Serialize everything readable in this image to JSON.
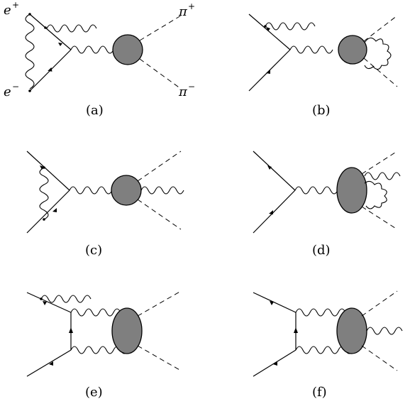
{
  "particles": {
    "e_plus_base": "e",
    "e_plus_sup": "+",
    "e_minus_base": "e",
    "e_minus_sup": "−",
    "pi_plus_base": "π",
    "pi_plus_sup": "+",
    "pi_minus_base": "π",
    "pi_minus_sup": "−"
  },
  "panels": [
    {
      "label": "(a)"
    },
    {
      "label": "(b)"
    },
    {
      "label": "(c)"
    },
    {
      "label": "(d)"
    },
    {
      "label": "(e)"
    },
    {
      "label": "(f)"
    }
  ]
}
